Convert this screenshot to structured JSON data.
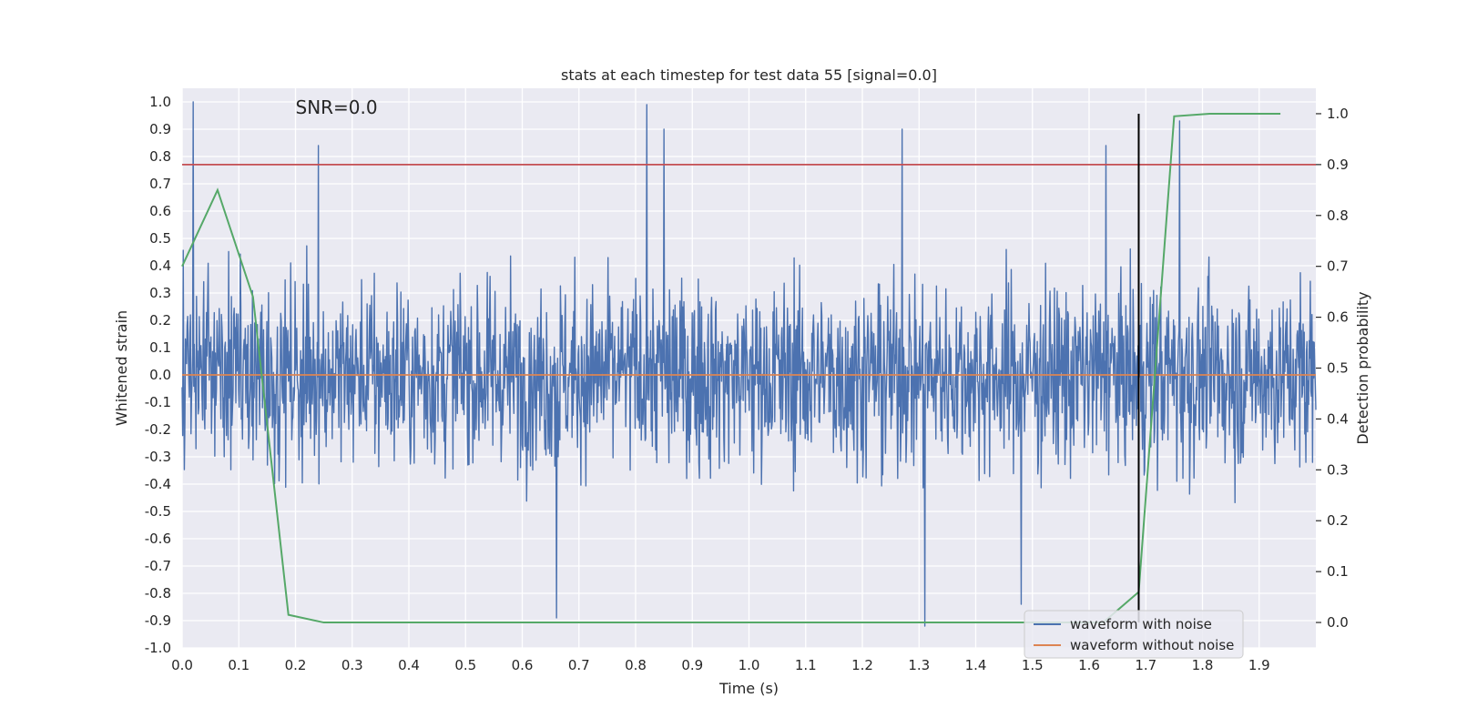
{
  "chart_data": {
    "type": "line",
    "title": "stats at each timestep for test data 55 [signal=0.0]",
    "xlabel": "Time (s)",
    "ylabel": "Whitened strain",
    "y2label": "Detection probability",
    "annotation": "SNR=0.0",
    "xlim": [
      0.0,
      2.0
    ],
    "ylim": [
      -1.0,
      1.05
    ],
    "y2lim": [
      -0.05,
      1.05
    ],
    "xticks": [
      "0.0",
      "0.1",
      "0.2",
      "0.3",
      "0.4",
      "0.5",
      "0.6",
      "0.7",
      "0.8",
      "0.9",
      "1.0",
      "1.1",
      "1.2",
      "1.3",
      "1.4",
      "1.5",
      "1.6",
      "1.7",
      "1.8",
      "1.9"
    ],
    "yticks": [
      "-1.0",
      "-0.9",
      "-0.8",
      "-0.7",
      "-0.6",
      "-0.5",
      "-0.4",
      "-0.3",
      "-0.2",
      "-0.1",
      "0.0",
      "0.1",
      "0.2",
      "0.3",
      "0.4",
      "0.5",
      "0.6",
      "0.7",
      "0.8",
      "0.9",
      "1.0"
    ],
    "y2ticks": [
      "0.0",
      "0.1",
      "0.2",
      "0.3",
      "0.4",
      "0.5",
      "0.6",
      "0.7",
      "0.8",
      "0.9",
      "1.0"
    ],
    "grid": true,
    "legend_placement": "lower-right",
    "series": [
      {
        "name": "waveform with noise",
        "axis": "left",
        "color": "#4c72b0",
        "sampling": {
          "start": 0.0,
          "end": 2.0,
          "n_points": 2048,
          "style": "white-noise",
          "min": -0.92,
          "max": 1.0
        },
        "notable_peaks": [
          {
            "x": 0.02,
            "y": 1.0
          },
          {
            "x": 0.24,
            "y": 0.84
          },
          {
            "x": 0.82,
            "y": 0.99
          },
          {
            "x": 0.85,
            "y": 0.9
          },
          {
            "x": 1.27,
            "y": 0.9
          },
          {
            "x": 1.63,
            "y": 0.84
          },
          {
            "x": 1.76,
            "y": 0.93
          },
          {
            "x": 1.31,
            "y": -0.92
          },
          {
            "x": 0.66,
            "y": -0.89
          },
          {
            "x": 1.48,
            "y": -0.84
          }
        ]
      },
      {
        "name": "waveform without noise",
        "axis": "left",
        "color": "#dd8452",
        "x": [
          0.0,
          2.0
        ],
        "y": [
          0.0,
          0.0
        ]
      },
      {
        "name": "",
        "axis": "right",
        "color": "#55a868",
        "x": [
          0.0,
          0.0625,
          0.125,
          0.1875,
          0.25,
          0.3125,
          1.625,
          1.6875,
          1.75,
          1.8125,
          1.875,
          1.9375
        ],
        "y": [
          0.7,
          0.85,
          0.64,
          0.015,
          0.0,
          0.0,
          0.0,
          0.06,
          0.995,
          1.0,
          1.0,
          1.0
        ]
      }
    ],
    "reference_lines": [
      {
        "orientation": "horizontal",
        "axis": "right",
        "value": 0.9,
        "color": "#c44e52"
      },
      {
        "orientation": "vertical",
        "value": 1.6875,
        "y2_from": 0.0,
        "y2_to": 1.0,
        "color": "#000000"
      }
    ]
  }
}
